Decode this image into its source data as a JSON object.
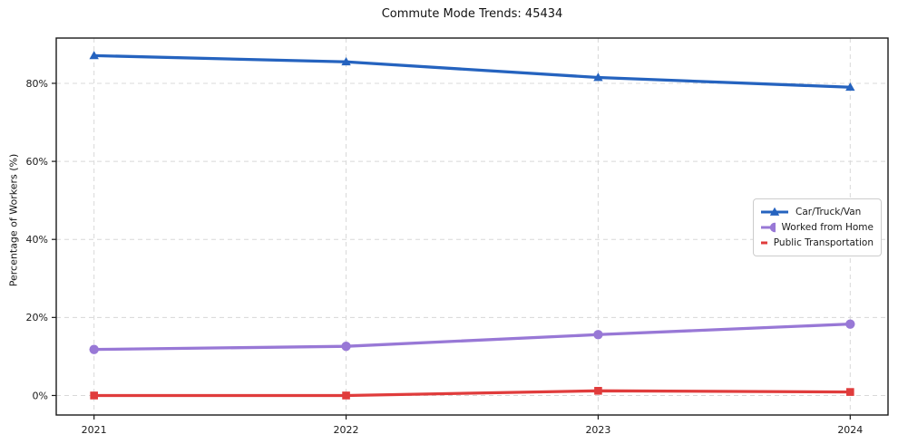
{
  "chart_data": {
    "type": "line",
    "title": "Commute Mode Trends: 45434",
    "xlabel": "",
    "ylabel": "Percentage of Workers (%)",
    "x": [
      2021,
      2022,
      2023,
      2024
    ],
    "x_tick_labels": [
      "2021",
      "2022",
      "2023",
      "2024"
    ],
    "y_ticks": [
      0,
      20,
      40,
      60,
      80
    ],
    "y_tick_labels": [
      "0%",
      "20%",
      "40%",
      "60%",
      "80%"
    ],
    "ylim": [
      -5,
      91.6
    ],
    "xlim": [
      2020.85,
      2024.15
    ],
    "grid": true,
    "grid_style": "dashed",
    "legend_position": "center right",
    "series": [
      {
        "name": "Car/Truck/Van",
        "color": "#2563bf",
        "marker": "triangle",
        "values": [
          87.1,
          85.5,
          81.5,
          79.0
        ]
      },
      {
        "name": "Worked from Home",
        "color": "#9878d6",
        "marker": "circle",
        "values": [
          11.8,
          12.6,
          15.6,
          18.3
        ]
      },
      {
        "name": "Public Transportation",
        "color": "#e03c3c",
        "marker": "square",
        "values": [
          0.0,
          0.0,
          1.2,
          0.9
        ]
      }
    ]
  },
  "colors": {
    "background": "#ffffff",
    "grid": "#d8d8d8",
    "axis": "#1a1a1a",
    "tick_label": "#1a1a1a",
    "legend_border": "#cccccc"
  }
}
